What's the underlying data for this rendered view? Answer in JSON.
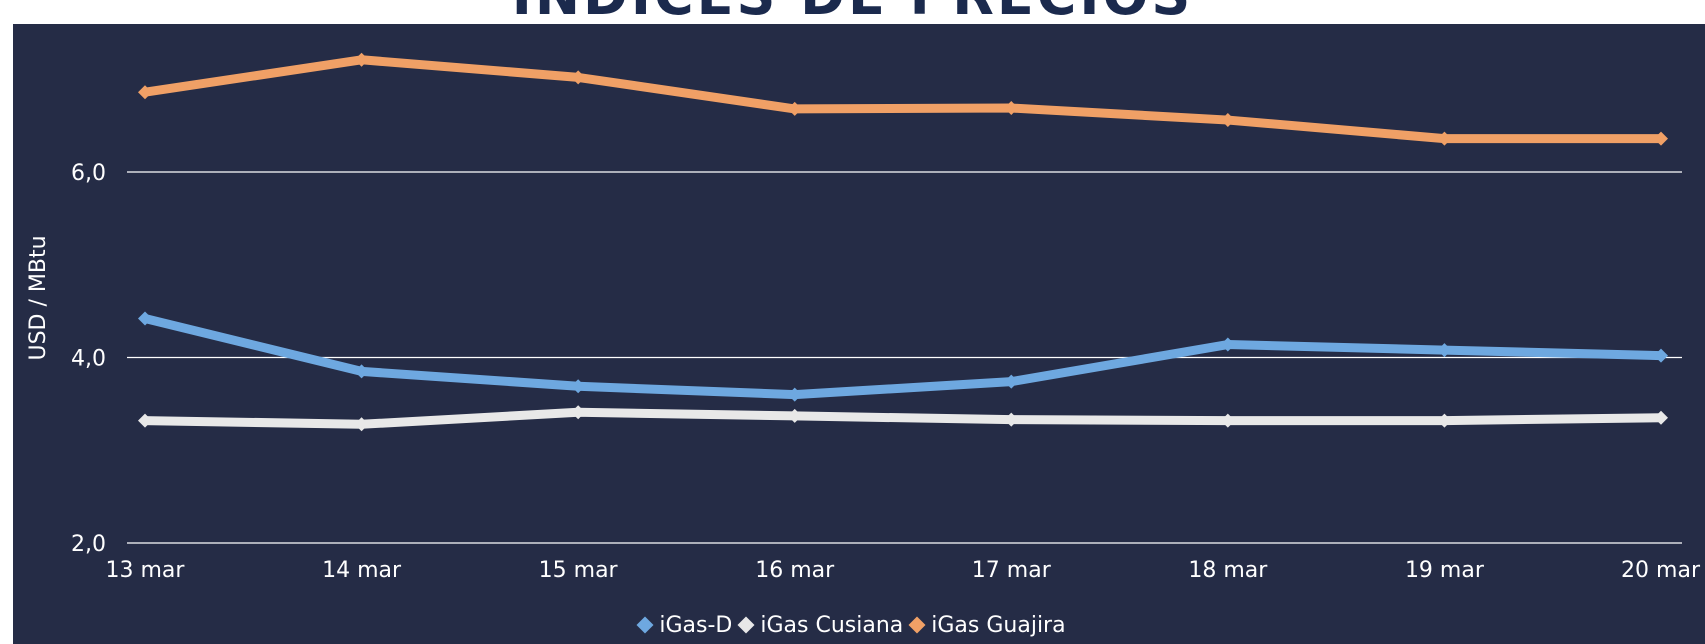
{
  "chart_data": {
    "type": "line",
    "title": "ÍNDICES DE PRECIOS",
    "ylabel": "USD / MBtu",
    "xlabel": "",
    "categories": [
      "13 mar",
      "14 mar",
      "15 mar",
      "16 mar",
      "17 mar",
      "18 mar",
      "19 mar",
      "20 mar"
    ],
    "ylim": [
      2.0,
      7.5
    ],
    "yticks": [
      {
        "value": 2.0,
        "label": "2,0"
      },
      {
        "value": 4.0,
        "label": "4,0"
      },
      {
        "value": 6.0,
        "label": "6,0"
      }
    ],
    "grid": true,
    "legend_position": "bottom",
    "series": [
      {
        "name": "iGas-D",
        "color": "#6ea8e0",
        "values": [
          4.42,
          3.85,
          3.69,
          3.6,
          3.74,
          4.14,
          4.08,
          4.02
        ]
      },
      {
        "name": "iGas Cusiana",
        "color": "#e8e8e8",
        "values": [
          3.32,
          3.28,
          3.41,
          3.37,
          3.33,
          3.32,
          3.32,
          3.35
        ]
      },
      {
        "name": "iGas Guajira",
        "color": "#f0a066",
        "values": [
          6.86,
          7.21,
          7.02,
          6.68,
          6.69,
          6.56,
          6.36,
          6.36
        ]
      }
    ]
  }
}
